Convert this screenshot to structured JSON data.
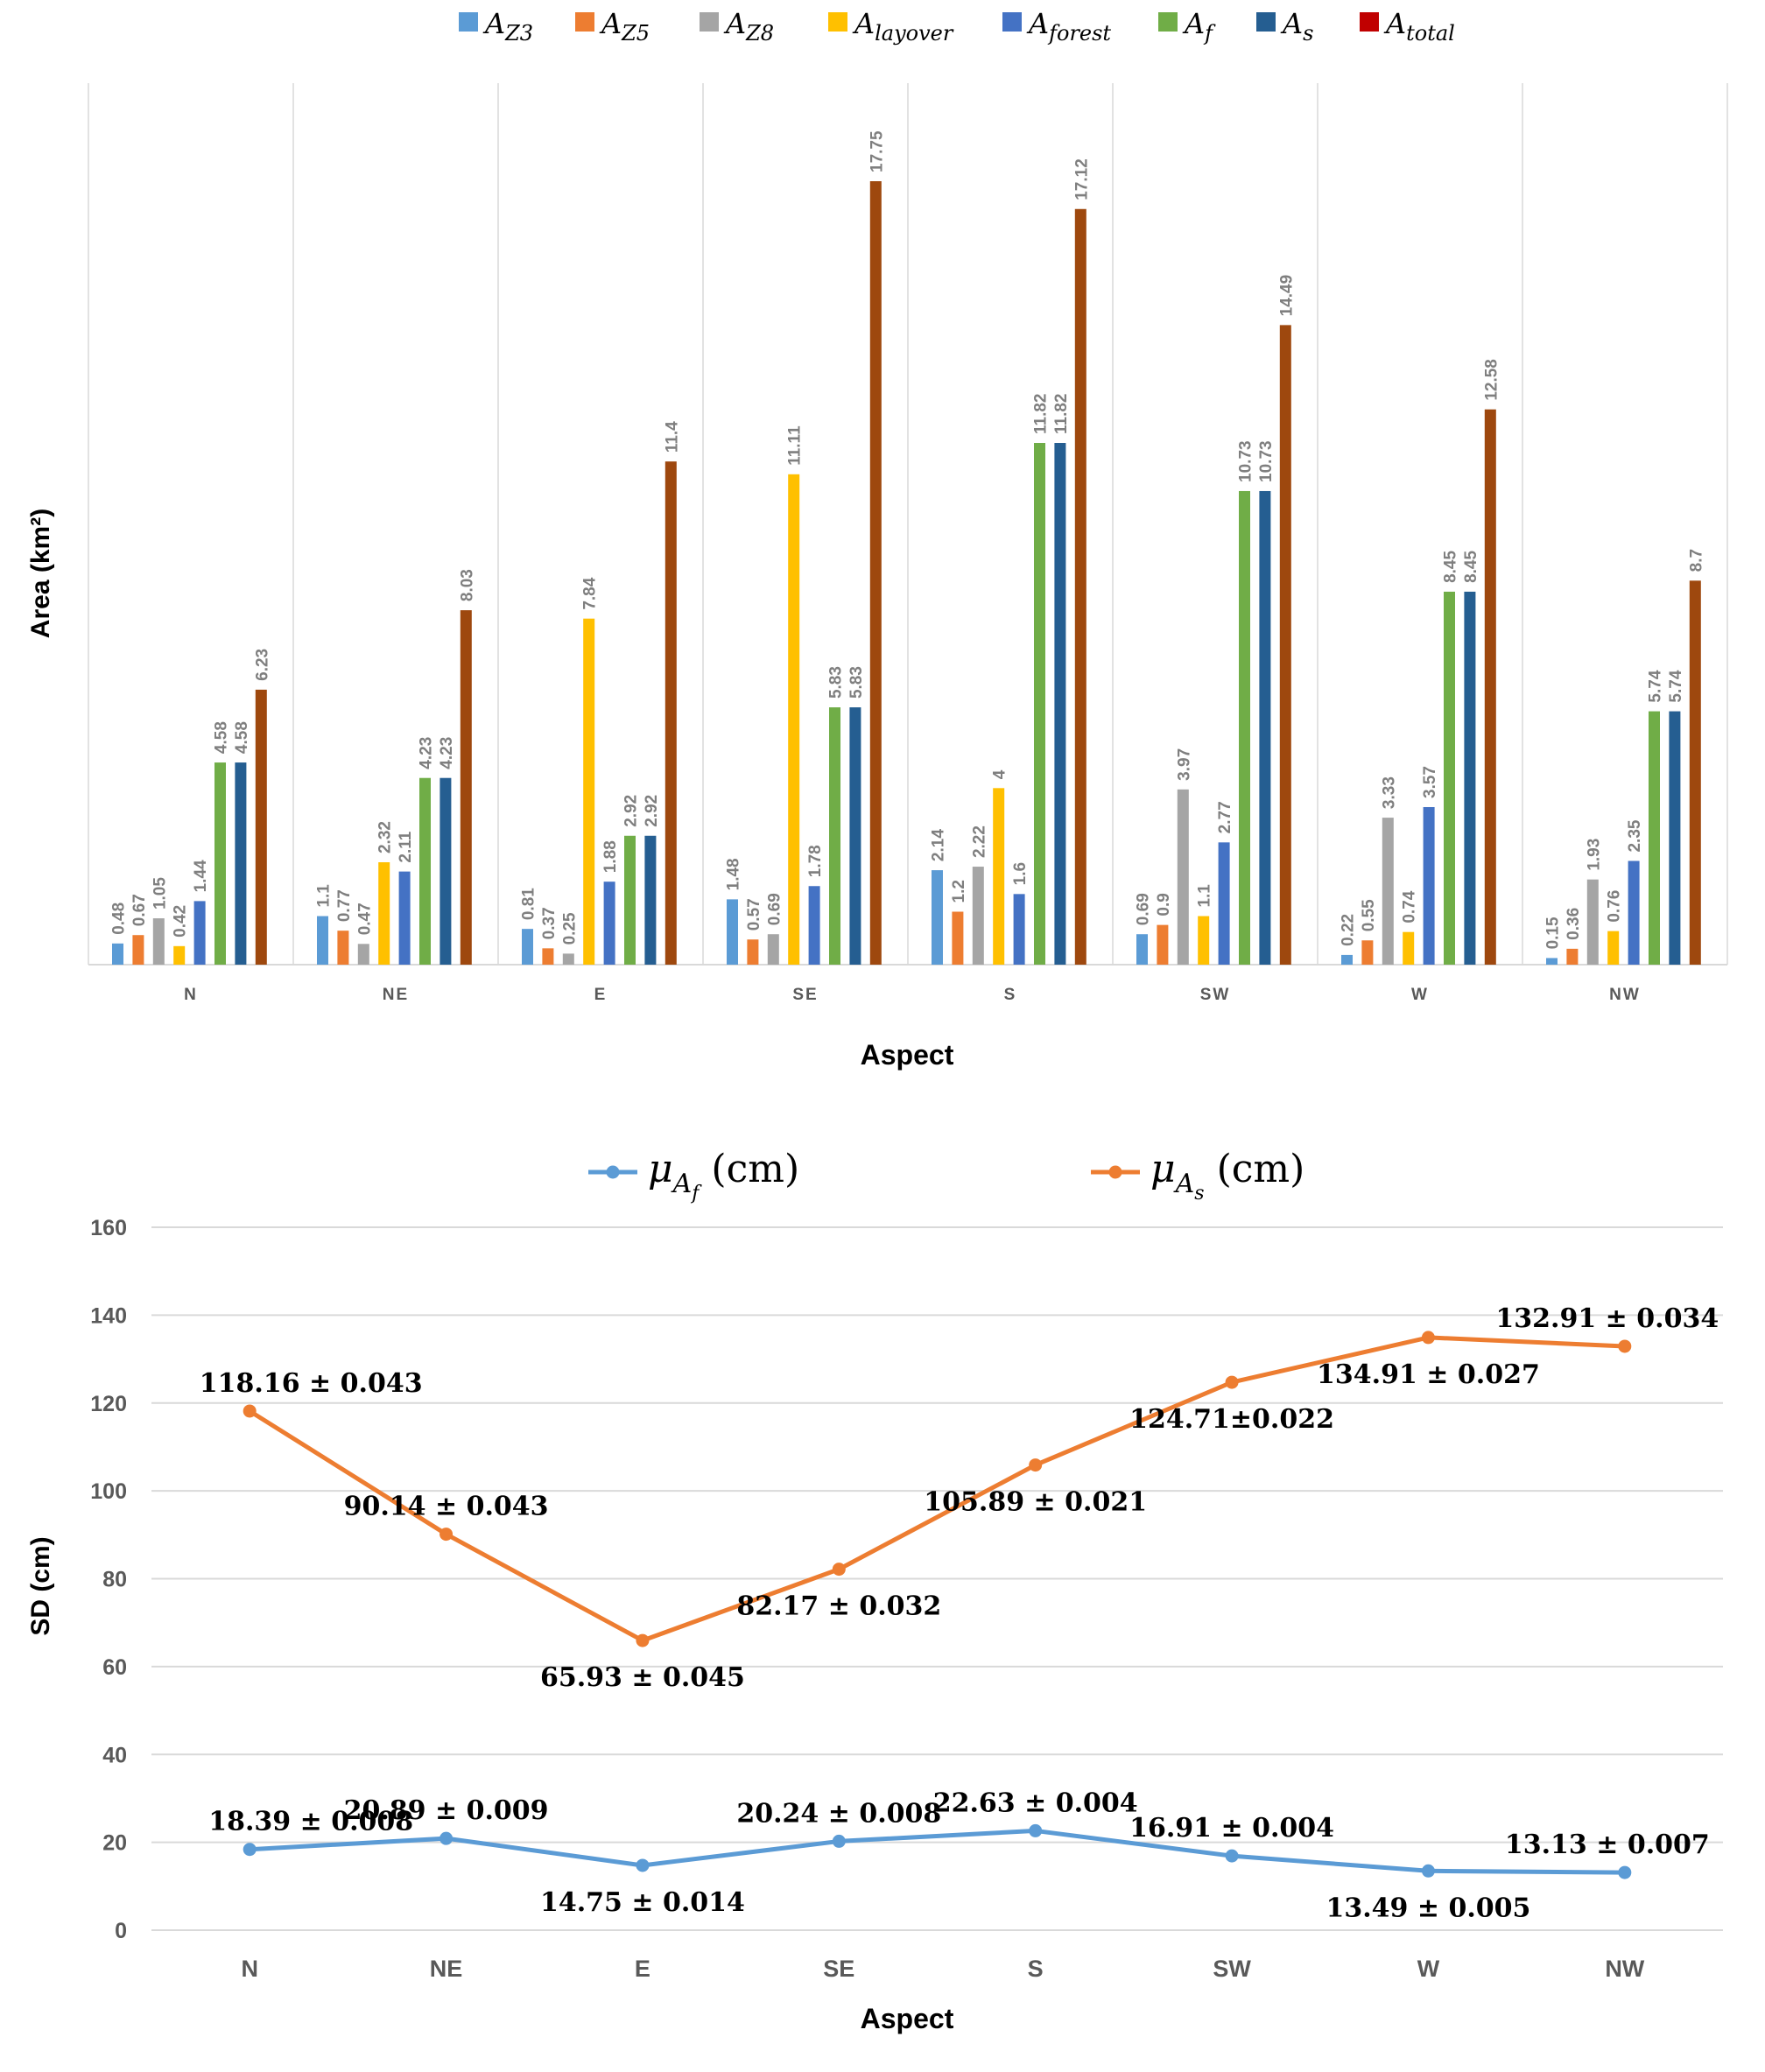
{
  "chart_data": [
    {
      "type": "bar",
      "xlabel": "Aspect",
      "ylabel": "Area (km²)",
      "ylim": [
        0,
        20
      ],
      "grid": false,
      "legend_position": "top",
      "categories": [
        "N",
        "NE",
        "E",
        "SE",
        "S",
        "SW",
        "W",
        "NW"
      ],
      "series": [
        {
          "name_base": "A",
          "name_sub": "Z3",
          "color": "#5b9bd5",
          "values": [
            0.48,
            1.1,
            0.81,
            1.48,
            2.14,
            0.69,
            0.22,
            0.15
          ]
        },
        {
          "name_base": "A",
          "name_sub": "Z5",
          "color": "#ed7d31",
          "values": [
            0.67,
            0.77,
            0.37,
            0.57,
            1.2,
            0.9,
            0.55,
            0.36
          ]
        },
        {
          "name_base": "A",
          "name_sub": "Z8",
          "color": "#a5a5a5",
          "values": [
            1.05,
            0.47,
            0.25,
            0.69,
            2.22,
            3.97,
            3.33,
            1.93
          ]
        },
        {
          "name_base": "A",
          "name_sub": "layover",
          "color": "#ffc000",
          "values": [
            0.42,
            2.32,
            7.84,
            11.11,
            4,
            1.1,
            0.74,
            0.76
          ]
        },
        {
          "name_base": "A",
          "name_sub": "forest",
          "color": "#4472c4",
          "values": [
            1.44,
            2.11,
            1.88,
            1.78,
            1.6,
            2.77,
            3.57,
            2.35
          ]
        },
        {
          "name_base": "A",
          "name_sub": "f",
          "color": "#70ad47",
          "values": [
            4.58,
            4.23,
            2.92,
            5.83,
            11.82,
            10.73,
            8.45,
            5.74
          ]
        },
        {
          "name_base": "A",
          "name_sub": "s",
          "color": "#255e91",
          "values": [
            4.58,
            4.23,
            2.92,
            5.83,
            11.82,
            10.73,
            8.45,
            5.74
          ]
        },
        {
          "name_base": "A",
          "name_sub": "total",
          "color": "#9e480e",
          "legend_color": "#c00000",
          "values": [
            6.23,
            8.03,
            11.4,
            17.75,
            17.12,
            14.49,
            12.58,
            8.7
          ]
        }
      ]
    },
    {
      "type": "line",
      "xlabel": "Aspect",
      "ylabel": "SD (cm)",
      "ylim": [
        0,
        160
      ],
      "yticks": [
        0,
        20,
        40,
        60,
        80,
        100,
        120,
        140,
        160
      ],
      "grid": true,
      "legend_position": "top",
      "categories": [
        "N",
        "NE",
        "E",
        "SE",
        "S",
        "SW",
        "W",
        "NW"
      ],
      "series": [
        {
          "name_base": "μ",
          "name_sub": "A",
          "name_subsub": "f",
          "name_unit": "(cm)",
          "color": "#5b9bd5",
          "values": [
            18.39,
            20.89,
            14.75,
            20.24,
            22.63,
            16.91,
            13.49,
            13.13
          ],
          "labels": [
            "18.39 ± 0.008",
            "20.89 ± 0.009",
            "14.75 ± 0.014",
            "20.24 ± 0.008",
            "22.63 ± 0.004",
            "16.91 ± 0.004",
            "13.49 ± 0.005",
            "13.13 ± 0.007"
          ],
          "label_pos": [
            "above",
            "above",
            "below",
            "above",
            "above",
            "above",
            "below",
            "above"
          ]
        },
        {
          "name_base": "μ",
          "name_sub": "A",
          "name_subsub": "s",
          "name_unit": "(cm)",
          "color": "#ed7d31",
          "values": [
            118.16,
            90.14,
            65.93,
            82.17,
            105.89,
            124.71,
            134.91,
            132.91
          ],
          "labels": [
            "118.16 ± 0.043",
            "90.14 ± 0.043",
            "65.93 ± 0.045",
            "82.17 ± 0.032",
            "105.89 ± 0.021",
            "124.71±0.022",
            "134.91 ± 0.027",
            "132.91 ± 0.034"
          ],
          "label_pos": [
            "above",
            "above",
            "below",
            "below",
            "below",
            "below",
            "below",
            "above"
          ]
        }
      ]
    }
  ]
}
